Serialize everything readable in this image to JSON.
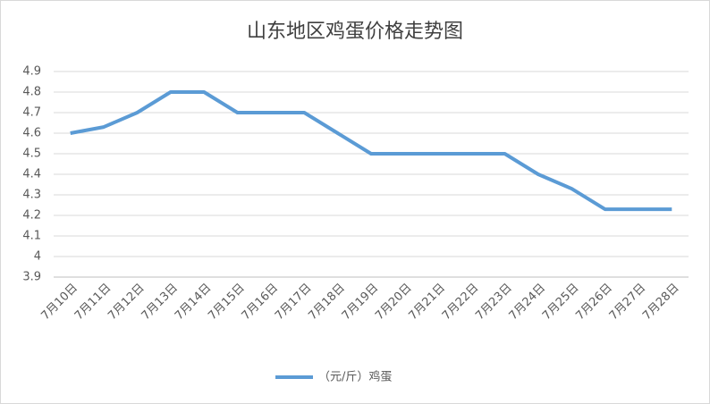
{
  "chart_data": {
    "type": "line",
    "title": "山东地区鸡蛋价格走势图",
    "categories": [
      "7月10日",
      "7月11日",
      "7月12日",
      "7月13日",
      "7月14日",
      "7月15日",
      "7月16日",
      "7月17日",
      "7月18日",
      "7月19日",
      "7月20日",
      "7月21日",
      "7月22日",
      "7月23日",
      "7月24日",
      "7月25日",
      "7月26日",
      "7月27日",
      "7月28日"
    ],
    "series": [
      {
        "name": "（元/斤）鸡蛋",
        "color": "#5b9bd5",
        "values": [
          4.6,
          4.63,
          4.7,
          4.8,
          4.8,
          4.7,
          4.7,
          4.7,
          4.6,
          4.5,
          4.5,
          4.5,
          4.5,
          4.5,
          4.4,
          4.33,
          4.23,
          4.23,
          4.23
        ]
      }
    ],
    "ylim": [
      3.9,
      4.9
    ],
    "yticks": [
      3.9,
      4,
      4.1,
      4.2,
      4.3,
      4.4,
      4.5,
      4.6,
      4.7,
      4.8,
      4.9
    ],
    "grid": true,
    "legend": "bottom"
  }
}
